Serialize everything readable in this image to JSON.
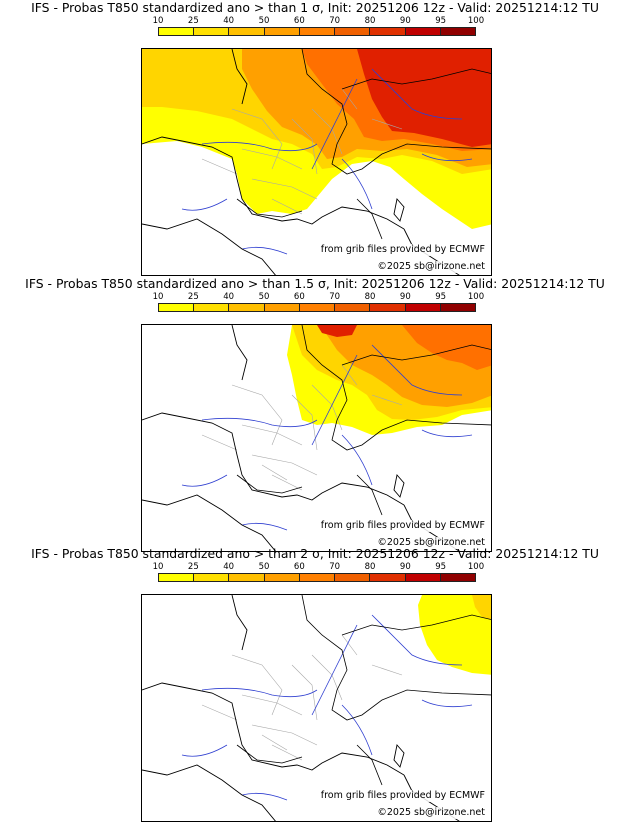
{
  "colorbar": {
    "ticks": [
      "10",
      "25",
      "40",
      "50",
      "60",
      "70",
      "80",
      "90",
      "95",
      "100"
    ],
    "colors": [
      "#ffff00",
      "#ffe000",
      "#ffc000",
      "#ffa000",
      "#ff8000",
      "#f06000",
      "#e03000",
      "#c00000",
      "#900000"
    ]
  },
  "colors": {
    "coast": "#000000",
    "border": "#000000",
    "regions": "#a8a8a8",
    "rivers": "#2f3fd0"
  },
  "panels": [
    {
      "title": "IFS - Probas T850  standardized ano > than 1 σ, Init: 20251206 12z - Valid: 20251214:12 TU",
      "credit_source": "from grib files provided by ECMWF",
      "credit_copyright": "©2025 sb@irizone.net",
      "shading_sigma": 1
    },
    {
      "title": "IFS - Probas T850  standardized ano > than 1.5 σ, Init: 20251206 12z - Valid: 20251214:12 TU",
      "credit_source": "from grib files provided by ECMWF",
      "credit_copyright": "©2025 sb@irizone.net",
      "shading_sigma": 1.5
    },
    {
      "title": "IFS - Probas T850  standardized ano > than 2 σ, Init: 20251206 12z - Valid: 20251214:12 TU",
      "credit_source": "from grib files provided by ECMWF",
      "credit_copyright": "©2025 sb@irizone.net",
      "shading_sigma": 2
    }
  ]
}
